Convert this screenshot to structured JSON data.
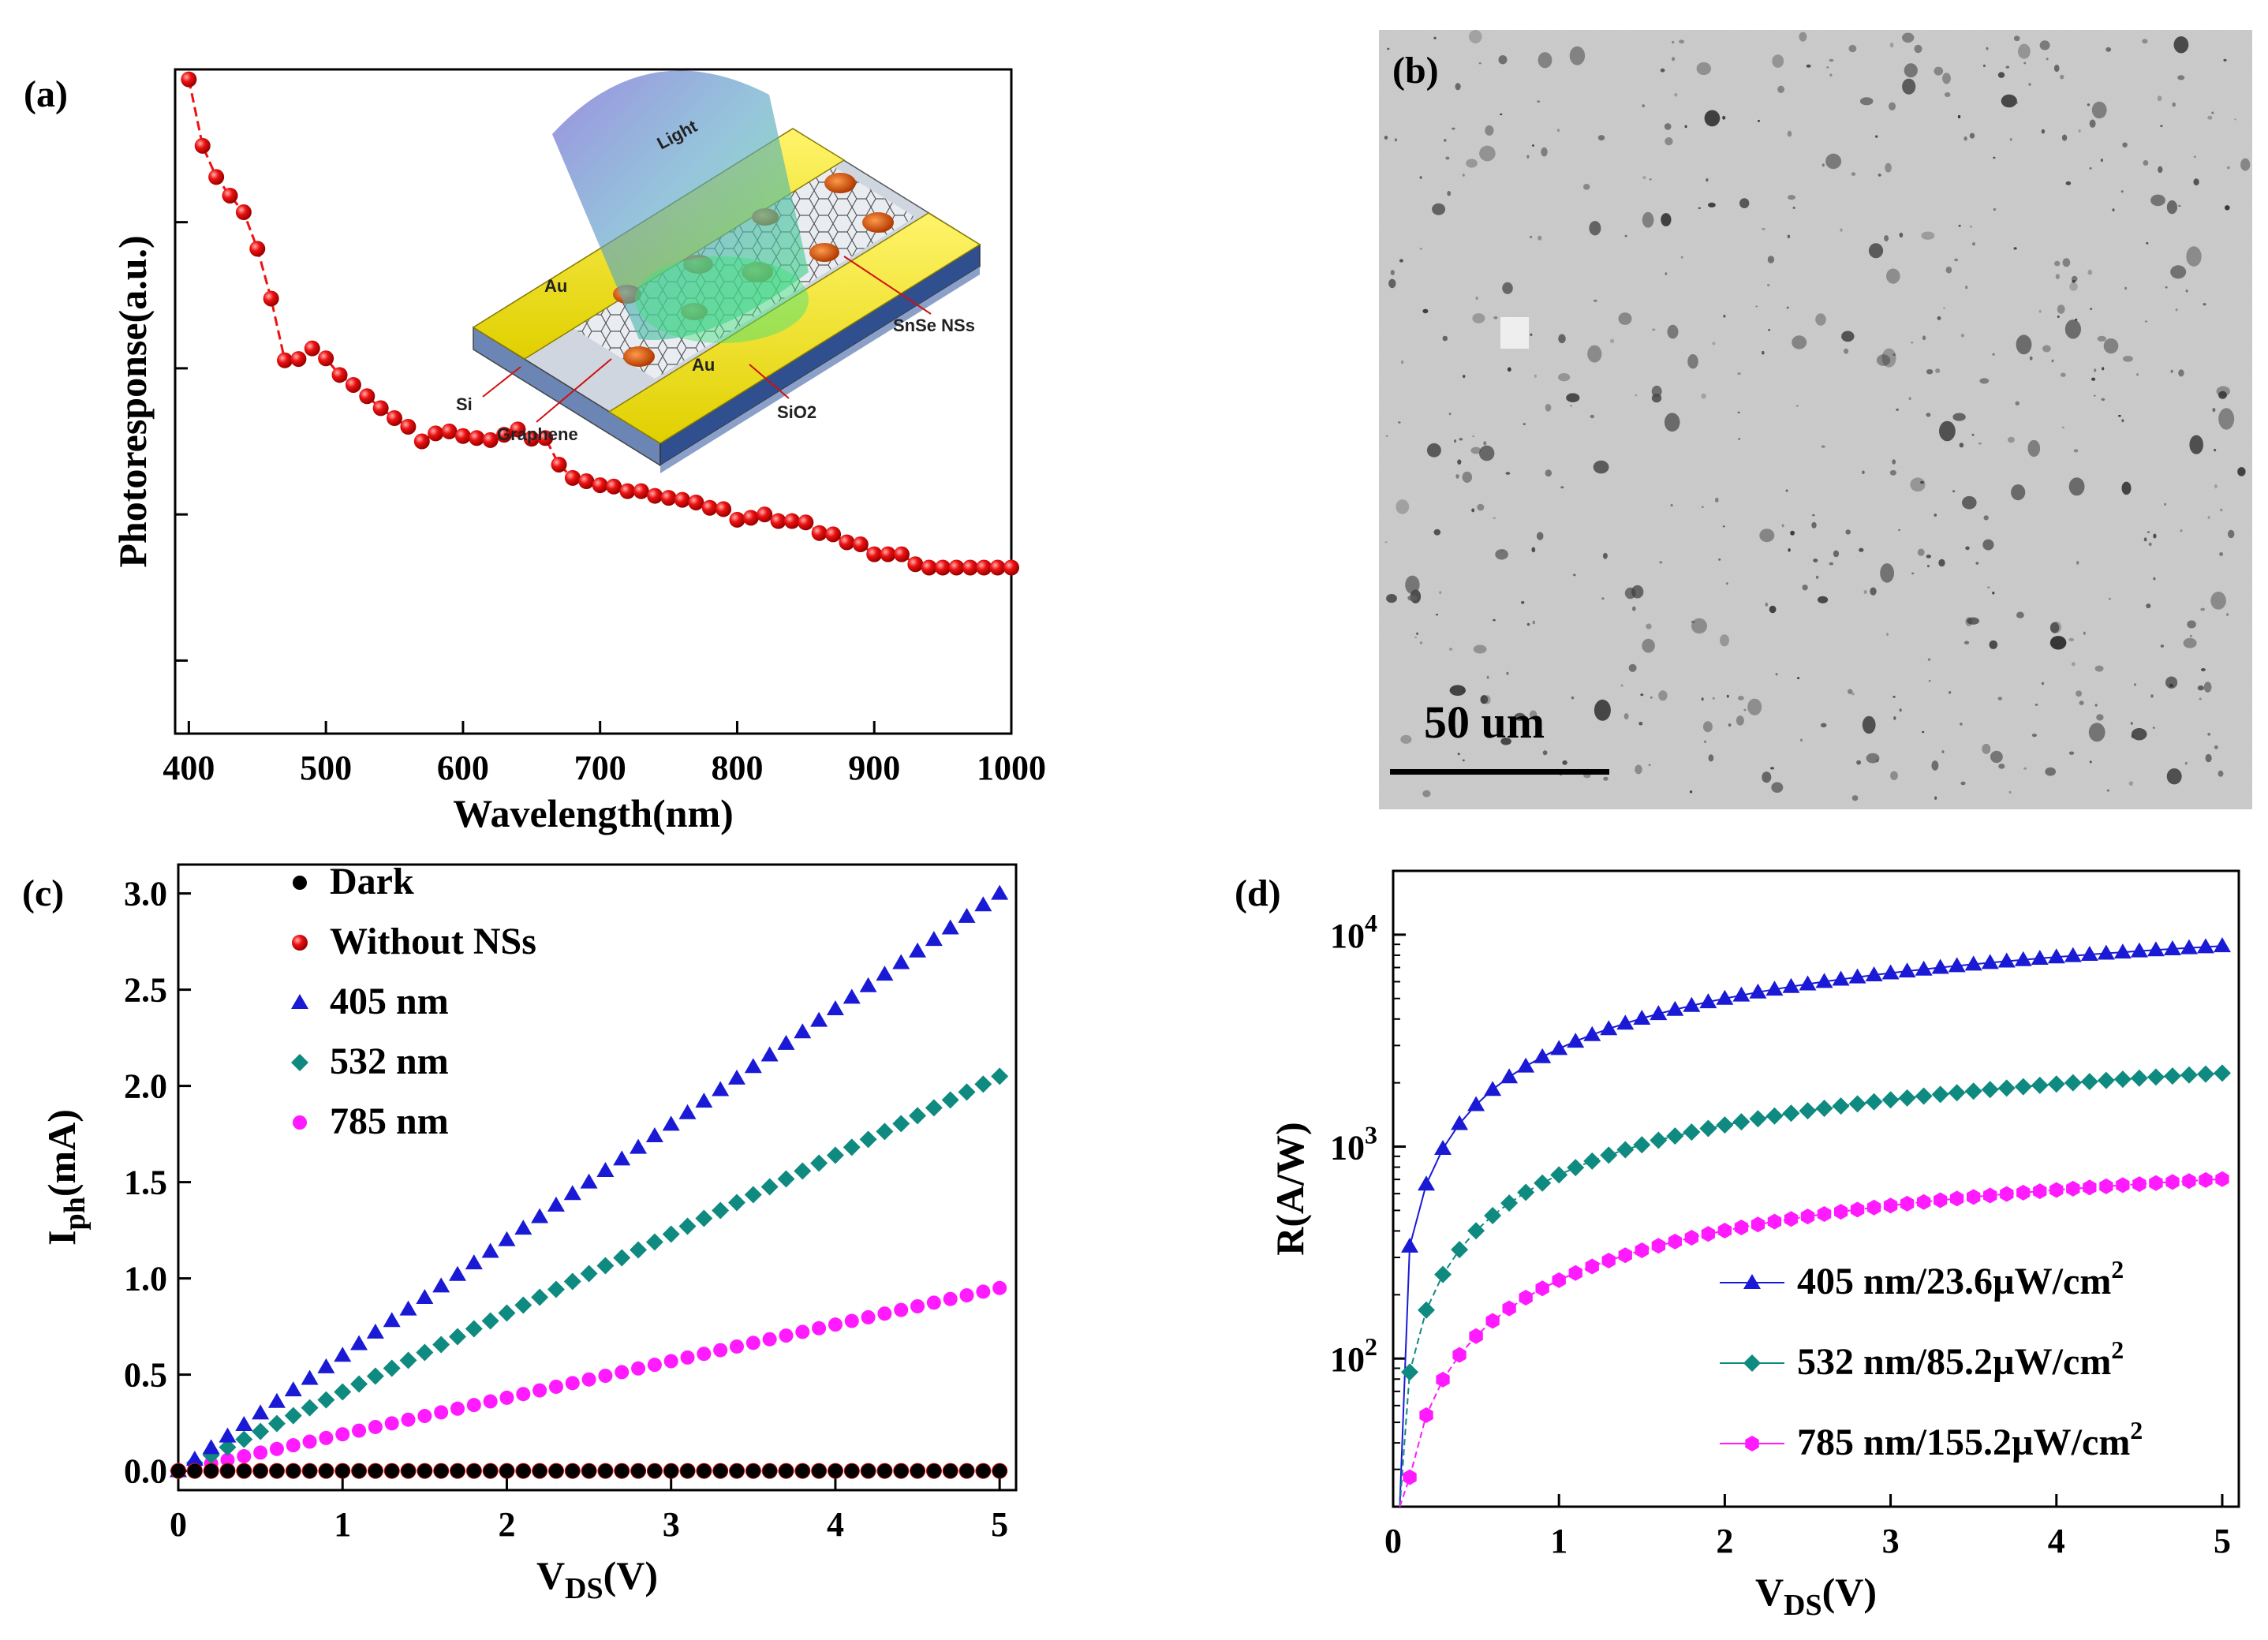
{
  "panels": {
    "a": {
      "label": "(a)"
    },
    "b": {
      "label": "(b)",
      "scalebar": "50 um"
    },
    "c": {
      "label": "(c)"
    },
    "d": {
      "label": "(d)"
    }
  },
  "inset": {
    "light": "Light",
    "au_left": "Au",
    "au_right": "Au",
    "snse": "SnSe NSs",
    "si": "Si",
    "graphene": "Graphene",
    "sio2": "SiO2"
  },
  "colors": {
    "red": "#ee1111",
    "blue": "#1a1ad6",
    "teal": "#0f8a80",
    "magenta": "#ff1aff",
    "black": "#000000"
  },
  "chart_data": [
    {
      "type": "line",
      "panel": "a",
      "xlabel": "Wavelength(nm)",
      "ylabel": "Photoresponse(a.u.)",
      "xlim": [
        390,
        1000
      ],
      "ylim": [
        0,
        1
      ],
      "xticks": [
        400,
        500,
        600,
        700,
        800,
        900,
        1000
      ],
      "yticklabels": "none",
      "series": [
        {
          "color": "#ee1111",
          "x": [
            400,
            410,
            420,
            430,
            440,
            450,
            460,
            470,
            480,
            490,
            500,
            510,
            520,
            530,
            540,
            550,
            560,
            570,
            580,
            590,
            600,
            610,
            620,
            630,
            640,
            650,
            660,
            670,
            680,
            690,
            700,
            710,
            720,
            730,
            740,
            750,
            760,
            770,
            780,
            790,
            800,
            810,
            820,
            830,
            840,
            850,
            860,
            870,
            880,
            890,
            900,
            910,
            920,
            930,
            940,
            950,
            960,
            970,
            980,
            990,
            1000
          ],
          "y": [
            0.985,
            0.885,
            0.838,
            0.81,
            0.785,
            0.73,
            0.655,
            0.562,
            0.564,
            0.58,
            0.565,
            0.54,
            0.525,
            0.508,
            0.49,
            0.475,
            0.462,
            0.44,
            0.452,
            0.455,
            0.448,
            0.445,
            0.442,
            0.45,
            0.458,
            0.444,
            0.445,
            0.405,
            0.385,
            0.38,
            0.374,
            0.372,
            0.365,
            0.365,
            0.358,
            0.355,
            0.352,
            0.348,
            0.34,
            0.338,
            0.322,
            0.325,
            0.33,
            0.32,
            0.32,
            0.318,
            0.302,
            0.3,
            0.288,
            0.285,
            0.27,
            0.27,
            0.27,
            0.255,
            0.25,
            0.25,
            0.25,
            0.25,
            0.25,
            0.25,
            0.25
          ]
        }
      ]
    },
    {
      "type": "scatter",
      "panel": "c",
      "xlabel": "V",
      "xlabel_sub": "DS",
      "xlabel_unit": "(V)",
      "ylabel": "I",
      "ylabel_sub": "ph",
      "ylabel_unit": "(mA)",
      "xlim": [
        0,
        5.1
      ],
      "ylim": [
        -0.1,
        3.15
      ],
      "xticks": [
        0,
        1,
        2,
        3,
        4,
        5
      ],
      "yticks": [
        0.0,
        0.5,
        1.0,
        1.5,
        2.0,
        2.5,
        3.0
      ],
      "series": [
        {
          "name": "Dark",
          "color": "#000000",
          "marker": "circle",
          "slope": 0.0
        },
        {
          "name": "Without NSs",
          "color": "#ee1111",
          "marker": "sphere",
          "slope": 0.0
        },
        {
          "name": "405 nm",
          "color": "#1a1ad6",
          "marker": "triangle",
          "slope": 0.6
        },
        {
          "name": "532 nm",
          "color": "#0f8a80",
          "marker": "diamond",
          "slope": 0.41
        },
        {
          "name": "785 nm",
          "color": "#ff1aff",
          "marker": "circle",
          "slope": 0.19
        }
      ],
      "x_step": 0.1
    },
    {
      "type": "scatter",
      "panel": "d",
      "xlabel": "V",
      "xlabel_sub": "DS",
      "xlabel_unit": "(V)",
      "ylabel": "R(A/W)",
      "xlim": [
        0,
        5.1
      ],
      "ylim": [
        20,
        20000
      ],
      "yscale": "log",
      "xticks": [
        0,
        1,
        2,
        3,
        4,
        5
      ],
      "yticks": [
        100,
        1000,
        10000
      ],
      "yticklabels": [
        "10",
        "10",
        "10"
      ],
      "yticklabel_exp": [
        "2",
        "3",
        "4"
      ],
      "series": [
        {
          "name": "405 nm/23.6µW/cm",
          "name_sup": "2",
          "color": "#1a1ad6",
          "marker": "triangle",
          "a": 3450,
          "k": 0.19,
          "r_at_005": 20
        },
        {
          "name": "532 nm/85.2µW/cm",
          "name_sup": "2",
          "color": "#0f8a80",
          "marker": "diamond",
          "a": 880,
          "k": 0.196,
          "r_at_005": 20
        },
        {
          "name": "785 nm/155.2µW/cm",
          "name_sup": "2",
          "color": "#ff1aff",
          "marker": "hexagon",
          "a": 281,
          "k": 0.2,
          "r_at_005": 20
        }
      ],
      "x_step": 0.1
    }
  ]
}
